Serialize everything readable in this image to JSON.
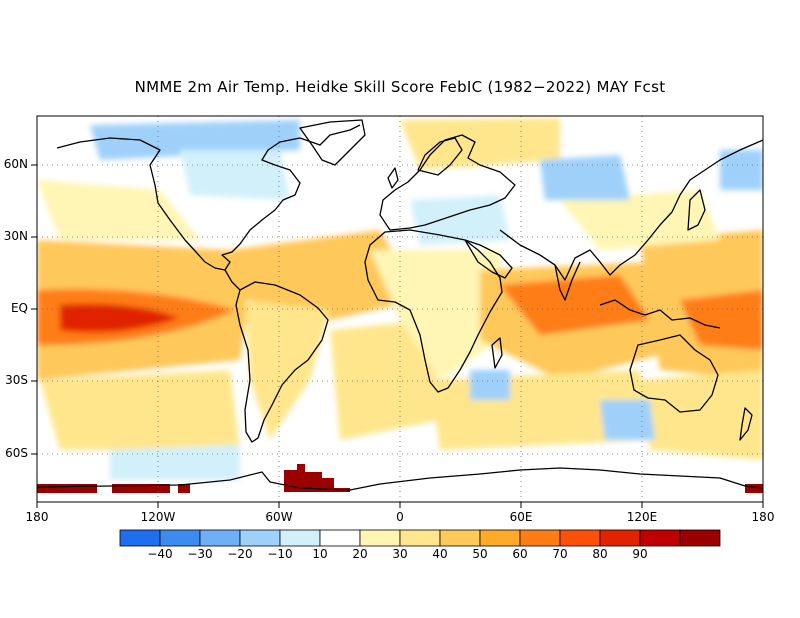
{
  "title": "NMME 2m Air Temp. Heidke Skill Score FebIC (1982−2022) MAY Fcst",
  "lat_ticks": [
    "60N",
    "30N",
    "EQ",
    "30S",
    "60S"
  ],
  "lon_ticks": [
    "180",
    "120W",
    "60W",
    "0",
    "60E",
    "120E",
    "180"
  ],
  "colorbar": {
    "labels": [
      "−40",
      "−30",
      "−20",
      "−10",
      "10",
      "20",
      "30",
      "40",
      "50",
      "60",
      "70",
      "80",
      "90"
    ],
    "colors": [
      "#1e6ef0",
      "#3c8cf0",
      "#6eaff5",
      "#9fd0fa",
      "#d2f0fa",
      "#ffffff",
      "#fff5b4",
      "#ffe68c",
      "#ffc85a",
      "#ffaa28",
      "#ff7d14",
      "#ff500a",
      "#e12300",
      "#c00000",
      "#9b0000"
    ]
  },
  "colors": {
    "warm_pale": "#fff5b4",
    "warm_light": "#ffe68c",
    "warm_mid": "#ffc85a",
    "warm_orange": "#ffaa28",
    "warm_deep": "#ff7d14",
    "warm_red": "#e12300",
    "warm_dark": "#9b0000",
    "cool_pale": "#d2f0fa",
    "cool_light": "#9fd0fa",
    "cool_mid": "#6eaff5",
    "coast": "#000000",
    "grid": "#666666"
  }
}
